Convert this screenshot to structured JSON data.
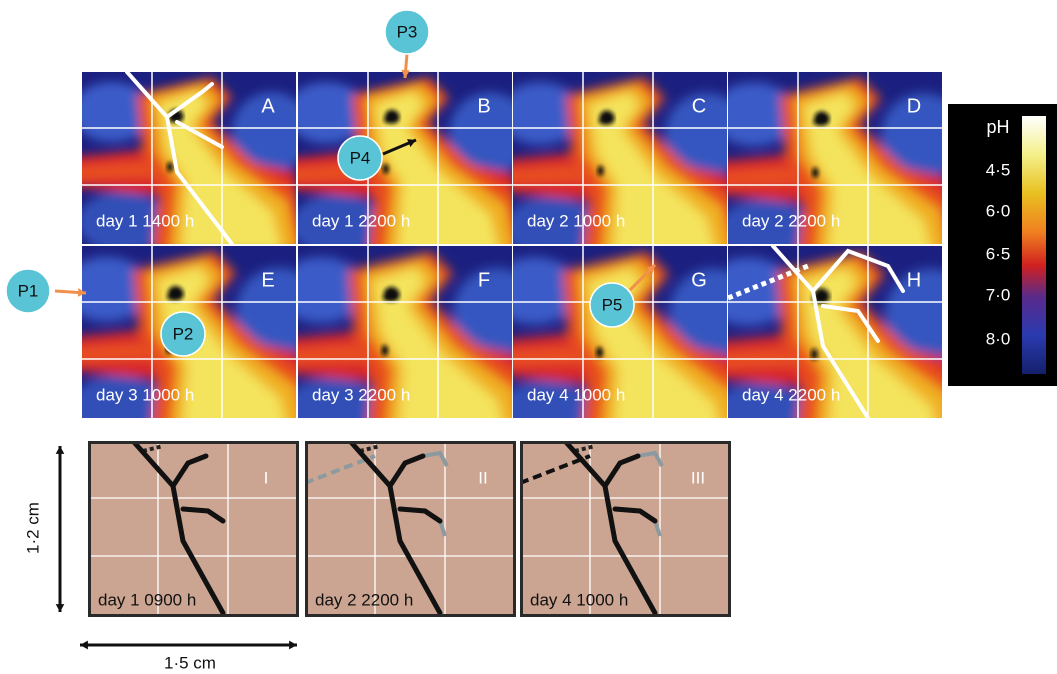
{
  "panels": [
    {
      "letter": "A",
      "label": "day 1 1400 h"
    },
    {
      "letter": "B",
      "label": "day 1 2200 h"
    },
    {
      "letter": "C",
      "label": "day 2 1000 h"
    },
    {
      "letter": "D",
      "label": "day 2 2200 h"
    },
    {
      "letter": "E",
      "label": "day 3 1000 h"
    },
    {
      "letter": "F",
      "label": "day 3 2200 h"
    },
    {
      "letter": "G",
      "label": "day 4 1000 h"
    },
    {
      "letter": "H",
      "label": "day 4 2200 h"
    }
  ],
  "callouts": [
    {
      "label": "P1"
    },
    {
      "label": "P2"
    },
    {
      "label": "P3"
    },
    {
      "label": "P4"
    },
    {
      "label": "P5"
    }
  ],
  "colorbar": {
    "title": "pH",
    "ticks": [
      "4·5",
      "6·0",
      "6·5",
      "7·0",
      "8·0"
    ]
  },
  "tracings": [
    {
      "numeral": "I",
      "label": "day 1 0900 h"
    },
    {
      "numeral": "II",
      "label": "day 2 2200 h"
    },
    {
      "numeral": "III",
      "label": "day 4 1000 h"
    }
  ],
  "scale": {
    "vertical": "1·2 cm",
    "horizontal": "1·5 cm"
  }
}
